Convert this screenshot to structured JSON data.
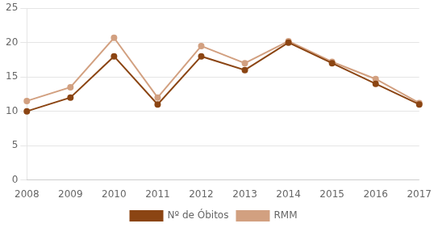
{
  "chart_data": {
    "type": "line",
    "categories": [
      2008,
      2009,
      2010,
      2011,
      2012,
      2013,
      2014,
      2015,
      2016,
      2017
    ],
    "series": [
      {
        "name": "Nº de Óbitos",
        "color": "#8B4513",
        "marker": "circle",
        "values": [
          10,
          12,
          18,
          11,
          18,
          16,
          20,
          17,
          14,
          11
        ]
      },
      {
        "name": "RMM",
        "color": "#D2A080",
        "marker": "circle",
        "values": [
          11.5,
          13.5,
          20.7,
          12.0,
          19.5,
          17.0,
          20.2,
          17.2,
          14.7,
          11.2
        ]
      }
    ],
    "ylim": [
      0,
      25
    ],
    "yticks": [
      0,
      5,
      10,
      15,
      20,
      25
    ],
    "grid": true,
    "legend": "bottom"
  }
}
